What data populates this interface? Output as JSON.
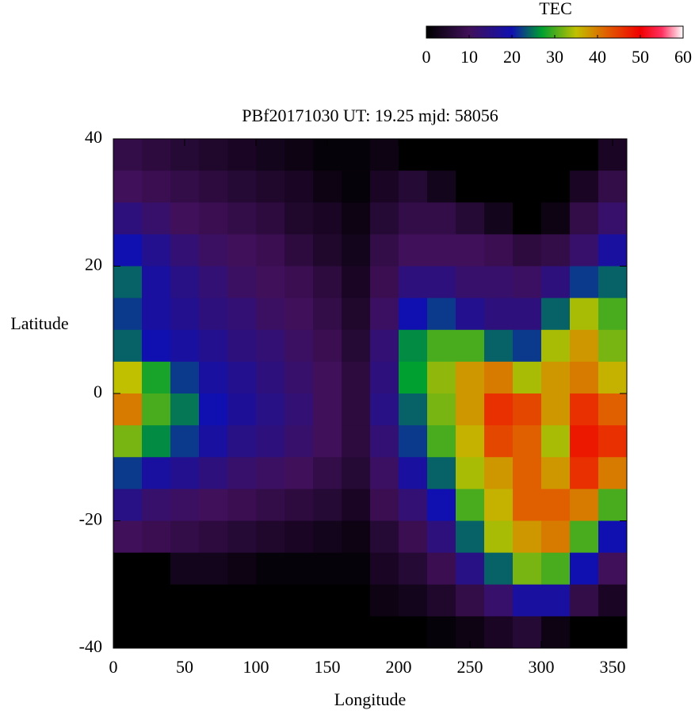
{
  "chart_data": {
    "type": "heatmap",
    "title": "PBf20171030  UT: 19.25  mjd: 58056",
    "xlabel": "Longitude",
    "ylabel": "Latitude",
    "colorbar_label": "TEC",
    "x": [
      10,
      30,
      50,
      70,
      90,
      110,
      130,
      150,
      170,
      190,
      210,
      230,
      250,
      270,
      290,
      310,
      330,
      350
    ],
    "y": [
      37.5,
      32.5,
      27.5,
      22.5,
      17.5,
      12.5,
      7.5,
      2.5,
      -2.5,
      -7.5,
      -12.5,
      -17.5,
      -22.5,
      -27.5,
      -32.5,
      -37.5
    ],
    "values": [
      [
        8,
        10,
        14,
        20,
        24,
        22,
        24,
        35,
        40,
        32,
        22,
        15,
        10,
        0,
        0,
        0
      ],
      [
        7,
        9,
        12,
        16,
        18,
        18,
        20,
        28,
        30,
        26,
        18,
        12,
        9,
        0,
        0,
        0
      ],
      [
        6,
        8,
        10,
        13,
        15,
        16,
        18,
        22,
        25,
        22,
        16,
        11,
        8,
        3,
        0,
        0
      ],
      [
        5,
        7,
        9,
        11,
        13,
        14,
        16,
        18,
        20,
        18,
        14,
        10,
        7,
        3,
        0,
        0
      ],
      [
        4,
        6,
        8,
        10,
        11,
        13,
        14,
        16,
        17,
        15,
        12,
        9,
        6,
        2,
        0,
        0
      ],
      [
        3,
        5,
        7,
        9,
        10,
        11,
        13,
        14,
        15,
        14,
        11,
        8,
        5,
        1,
        0,
        0
      ],
      [
        2,
        4,
        5,
        7,
        9,
        10,
        11,
        12,
        13,
        12,
        10,
        7,
        4,
        1,
        0,
        0
      ],
      [
        1,
        2,
        4,
        5,
        7,
        8,
        9,
        10,
        10,
        10,
        8,
        6,
        3,
        1,
        0,
        0
      ],
      [
        1,
        1,
        2,
        3,
        4,
        5,
        6,
        7,
        7,
        7,
        6,
        4,
        2,
        1,
        0,
        0
      ],
      [
        2,
        4,
        6,
        8,
        9,
        11,
        13,
        14,
        15,
        13,
        11,
        9,
        6,
        4,
        2,
        0
      ],
      [
        0,
        6,
        8,
        10,
        14,
        20,
        26,
        27,
        24,
        22,
        18,
        13,
        9,
        6,
        3,
        0
      ],
      [
        0,
        3,
        8,
        10,
        14,
        22,
        30,
        33,
        32,
        30,
        24,
        20,
        14,
        9,
        5,
        1
      ],
      [
        0,
        0,
        6,
        10,
        12,
        16,
        30,
        38,
        38,
        36,
        34,
        30,
        24,
        15,
        8,
        2
      ],
      [
        0,
        0,
        3,
        9,
        12,
        14,
        24,
        40,
        46,
        44,
        38,
        36,
        34,
        24,
        12,
        4
      ],
      [
        0,
        0,
        0,
        7,
        11,
        14,
        22,
        34,
        44,
        42,
        42,
        42,
        38,
        32,
        18,
        6
      ],
      [
        0,
        0,
        2,
        8,
        14,
        24,
        34,
        38,
        38,
        34,
        38,
        42,
        40,
        30,
        18,
        2
      ],
      [
        0,
        4,
        8,
        12,
        22,
        34,
        38,
        40,
        46,
        48,
        46,
        40,
        30,
        20,
        8,
        0
      ],
      [
        4,
        8,
        12,
        18,
        24,
        30,
        32,
        36,
        42,
        46,
        40,
        30,
        20,
        10,
        4,
        0
      ]
    ],
    "xlim": [
      0,
      360
    ],
    "xticks": [
      0,
      50,
      100,
      150,
      200,
      250,
      300,
      350
    ],
    "ylim": [
      -40,
      40
    ],
    "yticks": [
      -40,
      -20,
      0,
      20,
      40
    ],
    "zlim": [
      0,
      60
    ],
    "zticks": [
      0,
      10,
      20,
      30,
      40,
      50,
      60
    ],
    "colormap": [
      [
        0,
        "#000000"
      ],
      [
        10,
        "#40105a"
      ],
      [
        20,
        "#1010b0"
      ],
      [
        27,
        "#00a030"
      ],
      [
        35,
        "#c0c000"
      ],
      [
        42,
        "#e06000"
      ],
      [
        50,
        "#f00000"
      ],
      [
        55,
        "#ff3060"
      ],
      [
        60,
        "#ffffff"
      ]
    ]
  }
}
